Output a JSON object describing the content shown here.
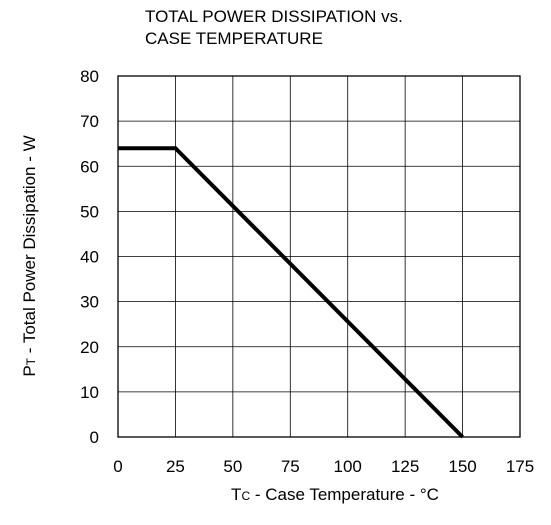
{
  "chart_data": {
    "type": "line",
    "title_lines": [
      "TOTAL POWER DISSIPATION vs.",
      "CASE TEMPERATURE"
    ],
    "xlabel": {
      "main": "T",
      "sub": "C",
      "rest": " - Case Temperature - °C"
    },
    "ylabel": {
      "main": "P",
      "sub": "T",
      "rest": " - Total Power Dissipation - W"
    },
    "xlim": [
      0,
      175
    ],
    "ylim": [
      0,
      80
    ],
    "xticks": [
      0,
      25,
      50,
      75,
      100,
      125,
      150,
      175
    ],
    "yticks": [
      0,
      10,
      20,
      30,
      40,
      50,
      60,
      70,
      80
    ],
    "grid": true,
    "series": [
      {
        "x": [
          0,
          25,
          150
        ],
        "y": [
          64,
          64,
          0
        ]
      }
    ]
  }
}
